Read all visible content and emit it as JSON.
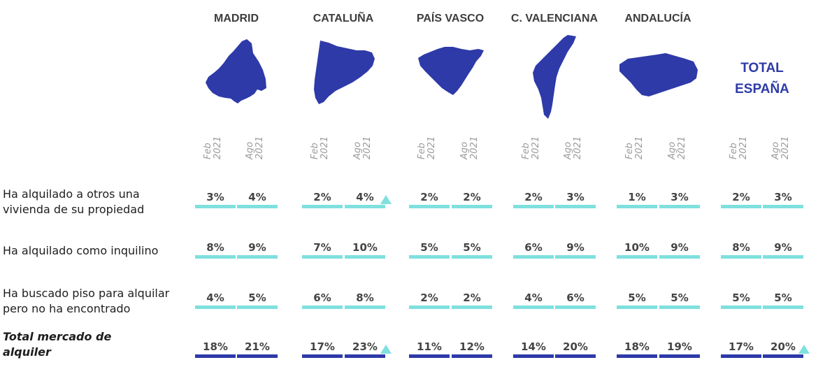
{
  "colors": {
    "map": "#2e3aa8",
    "title": "#2e3aa8",
    "region_text": "#3d3d3d",
    "row_text": "#1e1e1e",
    "value_text": "#444444",
    "period_text": "#9b9b9b",
    "bar_light": "#7fe0de",
    "bar_dark": "#2e3aa8",
    "marker": "#7fe0de"
  },
  "icons": {
    "madrid": "madrid-map-icon",
    "cataluna": "cataluna-map-icon",
    "pais_vasco": "pais-vasco-map-icon",
    "valenciana": "valenciana-map-icon",
    "andalucia": "andalucia-map-icon",
    "increase": "triangle-up-icon"
  },
  "chart_data": {
    "type": "table",
    "total_title": [
      "TOTAL",
      "ESPAÑA"
    ],
    "periods": [
      [
        "Feb",
        "2021"
      ],
      [
        "Ago",
        "2021"
      ]
    ],
    "regions": [
      {
        "name": "MADRID"
      },
      {
        "name": "CATALUÑA"
      },
      {
        "name": "PAÍS VASCO"
      },
      {
        "name": "C. VALENCIANA"
      },
      {
        "name": "ANDALUCÍA"
      },
      {
        "name": ""
      }
    ],
    "rows": [
      {
        "label": [
          "Ha alquilado a otros una",
          "vivienda de su propiedad"
        ],
        "total": false,
        "values": [
          [
            "3%",
            "4%"
          ],
          [
            "2%",
            "4%"
          ],
          [
            "2%",
            "2%"
          ],
          [
            "2%",
            "3%"
          ],
          [
            "1%",
            "3%"
          ],
          [
            "2%",
            "3%"
          ]
        ],
        "increase": [
          [
            false,
            false
          ],
          [
            false,
            true
          ],
          [
            false,
            false
          ],
          [
            false,
            false
          ],
          [
            false,
            false
          ],
          [
            false,
            false
          ]
        ]
      },
      {
        "label": [
          "Ha alquilado como inquilino"
        ],
        "total": false,
        "values": [
          [
            "8%",
            "9%"
          ],
          [
            "7%",
            "10%"
          ],
          [
            "5%",
            "5%"
          ],
          [
            "6%",
            "9%"
          ],
          [
            "10%",
            "9%"
          ],
          [
            "8%",
            "9%"
          ]
        ],
        "increase": [
          [
            false,
            false
          ],
          [
            false,
            false
          ],
          [
            false,
            false
          ],
          [
            false,
            false
          ],
          [
            false,
            false
          ],
          [
            false,
            false
          ]
        ]
      },
      {
        "label": [
          "Ha buscado piso para alquilar",
          "pero no ha encontrado"
        ],
        "total": false,
        "values": [
          [
            "4%",
            "5%"
          ],
          [
            "6%",
            "8%"
          ],
          [
            "2%",
            "2%"
          ],
          [
            "4%",
            "6%"
          ],
          [
            "5%",
            "5%"
          ],
          [
            "5%",
            "5%"
          ]
        ],
        "increase": [
          [
            false,
            false
          ],
          [
            false,
            false
          ],
          [
            false,
            false
          ],
          [
            false,
            false
          ],
          [
            false,
            false
          ],
          [
            false,
            false
          ]
        ]
      },
      {
        "label": [
          "Total mercado de",
          "alquiler"
        ],
        "total": true,
        "values": [
          [
            "18%",
            "21%"
          ],
          [
            "17%",
            "23%"
          ],
          [
            "11%",
            "12%"
          ],
          [
            "14%",
            "20%"
          ],
          [
            "18%",
            "19%"
          ],
          [
            "17%",
            "20%"
          ]
        ],
        "increase": [
          [
            false,
            false
          ],
          [
            false,
            true
          ],
          [
            false,
            false
          ],
          [
            false,
            false
          ],
          [
            false,
            false
          ],
          [
            false,
            true
          ]
        ]
      }
    ]
  }
}
